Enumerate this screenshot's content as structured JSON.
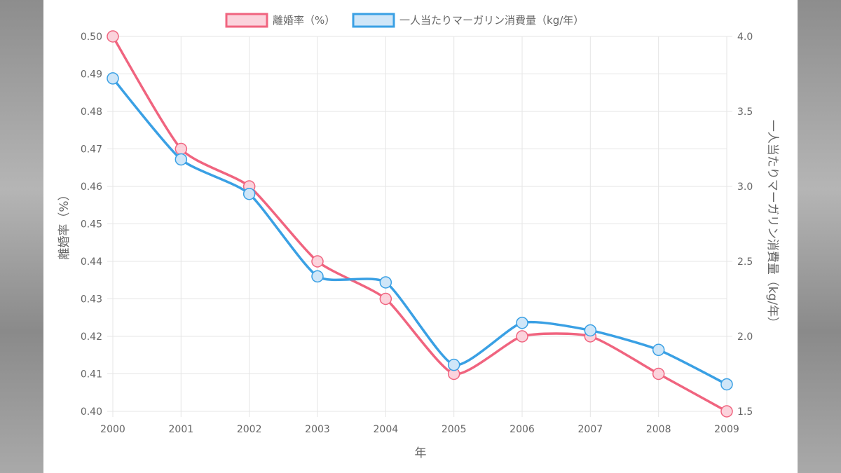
{
  "chart_data": {
    "type": "line",
    "title": "",
    "xlabel": "年",
    "ylabel_left": "離婚率（%）",
    "ylabel_right": "一人当たりマーガリン消費量（kg/年）",
    "categories": [
      "2000",
      "2001",
      "2002",
      "2003",
      "2004",
      "2005",
      "2006",
      "2007",
      "2008",
      "2009"
    ],
    "y_left": {
      "min": 0.4,
      "max": 0.5,
      "step": 0.01,
      "ticks": [
        "0.40",
        "0.41",
        "0.42",
        "0.43",
        "0.44",
        "0.45",
        "0.46",
        "0.47",
        "0.48",
        "0.49",
        "0.50"
      ]
    },
    "y_right": {
      "min": 1.5,
      "max": 4.0,
      "step": 0.5,
      "ticks": [
        "1.5",
        "2.0",
        "2.5",
        "3.0",
        "3.5",
        "4.0"
      ]
    },
    "grid": true,
    "legend_position": "top",
    "series": [
      {
        "name": "離婚率（%）",
        "axis": "left",
        "color": "#f0647f",
        "fill": "#fbd3dc",
        "values": [
          0.5,
          0.47,
          0.46,
          0.44,
          0.43,
          0.41,
          0.42,
          0.42,
          0.41,
          0.4
        ]
      },
      {
        "name": "一人当たりマーガリン消費量（kg/年）",
        "axis": "right",
        "color": "#3aa0e4",
        "fill": "#cfe6f8",
        "values": [
          3.72,
          3.18,
          2.95,
          2.4,
          2.36,
          1.81,
          2.09,
          2.04,
          1.91,
          1.68
        ]
      }
    ]
  }
}
